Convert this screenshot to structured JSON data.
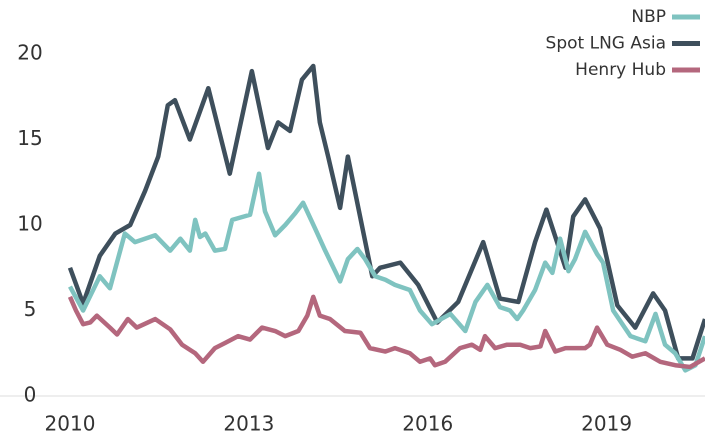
{
  "chart_data": {
    "type": "line",
    "xlim": [
      2010,
      2020.65
    ],
    "xticks": [
      2010,
      2013,
      2016,
      2019
    ],
    "ylim": [
      0,
      20
    ],
    "yticks": [
      0,
      5,
      10,
      15,
      20
    ],
    "legend": "top-right",
    "series": [
      {
        "name": "Spot LNG Asia",
        "color": "#3e4f5c",
        "x": [
          2010,
          2010.22,
          2010.5,
          2010.76,
          2011.01,
          2011.26,
          2011.48,
          2011.64,
          2011.76,
          2012.01,
          2012.32,
          2012.68,
          2013.05,
          2013.32,
          2013.49,
          2013.69,
          2013.89,
          2014.08,
          2014.19,
          2014.33,
          2014.53,
          2014.66,
          2015.07,
          2015.2,
          2015.54,
          2015.84,
          2016.16,
          2016.51,
          2016.93,
          2017.21,
          2017.52,
          2017.8,
          2017.99,
          2018.31,
          2018.44,
          2018.64,
          2018.89,
          2019.18,
          2019.48,
          2019.78,
          2019.98,
          2020.2,
          2020.44,
          2020.65
        ],
        "values": [
          7.5,
          5.4,
          8.2,
          9.5,
          10,
          12,
          14,
          17,
          17.3,
          15,
          18,
          13,
          19,
          14.5,
          16,
          15.5,
          18.5,
          19.3,
          16,
          14,
          11,
          14,
          7,
          7.5,
          7.8,
          6.5,
          4.3,
          5.5,
          9,
          5.7,
          5.5,
          9,
          10.9,
          7.5,
          10.5,
          11.5,
          9.8,
          5.3,
          4,
          6,
          5,
          2.2,
          2.2,
          4.5
        ]
      },
      {
        "name": "NBP",
        "color": "#7fc3c0",
        "x": [
          2010,
          2010.22,
          2010.5,
          2010.67,
          2010.92,
          2011.09,
          2011.43,
          2011.68,
          2011.85,
          2012.01,
          2012.1,
          2012.18,
          2012.27,
          2012.43,
          2012.6,
          2012.72,
          2013.02,
          2013.17,
          2013.27,
          2013.44,
          2013.61,
          2013.78,
          2013.91,
          2014.11,
          2014.28,
          2014.53,
          2014.66,
          2014.82,
          2014.95,
          2015.12,
          2015.29,
          2015.45,
          2015.7,
          2015.87,
          2016.07,
          2016.38,
          2016.63,
          2016.8,
          2017,
          2017.21,
          2017.38,
          2017.5,
          2017.6,
          2017.8,
          2017.97,
          2018.09,
          2018.22,
          2018.36,
          2018.47,
          2018.64,
          2018.84,
          2018.94,
          2019.11,
          2019.4,
          2019.65,
          2019.82,
          2019.98,
          2020.15,
          2020.32,
          2020.49,
          2020.65
        ],
        "values": [
          6.4,
          5,
          7,
          6.3,
          9.5,
          9,
          9.4,
          8.5,
          9.2,
          8.5,
          10.3,
          9.3,
          9.5,
          8.5,
          8.6,
          10.3,
          10.6,
          13,
          10.8,
          9.4,
          10,
          10.7,
          11.3,
          9.8,
          8.5,
          6.7,
          8,
          8.6,
          8,
          7,
          6.8,
          6.5,
          6.2,
          5,
          4.2,
          4.8,
          3.8,
          5.5,
          6.5,
          5.2,
          5,
          4.5,
          5,
          6.2,
          7.8,
          7.2,
          9.2,
          7.3,
          8,
          9.6,
          8.3,
          7.8,
          5,
          3.5,
          3.2,
          4.8,
          3,
          2.5,
          1.5,
          1.8,
          3.5
        ]
      },
      {
        "name": "Henry Hub",
        "color": "#b4677d",
        "x": [
          2010,
          2010.1,
          2010.22,
          2010.34,
          2010.45,
          2010.67,
          2010.79,
          2010.97,
          2011.12,
          2011.43,
          2011.68,
          2011.88,
          2012.1,
          2012.23,
          2012.43,
          2012.6,
          2012.82,
          2013.02,
          2013.22,
          2013.44,
          2013.61,
          2013.83,
          2013.98,
          2014.08,
          2014.19,
          2014.36,
          2014.61,
          2014.87,
          2015.03,
          2015.29,
          2015.45,
          2015.7,
          2015.87,
          2016.04,
          2016.12,
          2016.29,
          2016.54,
          2016.74,
          2016.88,
          2016.96,
          2017.13,
          2017.33,
          2017.55,
          2017.72,
          2017.89,
          2017.97,
          2018.14,
          2018.31,
          2018.64,
          2018.72,
          2018.84,
          2019.01,
          2019.23,
          2019.43,
          2019.65,
          2019.9,
          2020.15,
          2020.4,
          2020.65
        ],
        "values": [
          5.8,
          5,
          4.2,
          4.3,
          4.7,
          4,
          3.6,
          4.5,
          4,
          4.5,
          3.9,
          3,
          2.5,
          2,
          2.8,
          3.1,
          3.5,
          3.3,
          4,
          3.8,
          3.5,
          3.8,
          4.7,
          5.8,
          4.7,
          4.5,
          3.8,
          3.7,
          2.8,
          2.6,
          2.8,
          2.5,
          2,
          2.2,
          1.8,
          2,
          2.8,
          3,
          2.7,
          3.5,
          2.8,
          3,
          3,
          2.8,
          2.9,
          3.8,
          2.6,
          2.8,
          2.8,
          3,
          4,
          3,
          2.7,
          2.3,
          2.5,
          2,
          1.8,
          1.7,
          2.2
        ]
      }
    ]
  }
}
